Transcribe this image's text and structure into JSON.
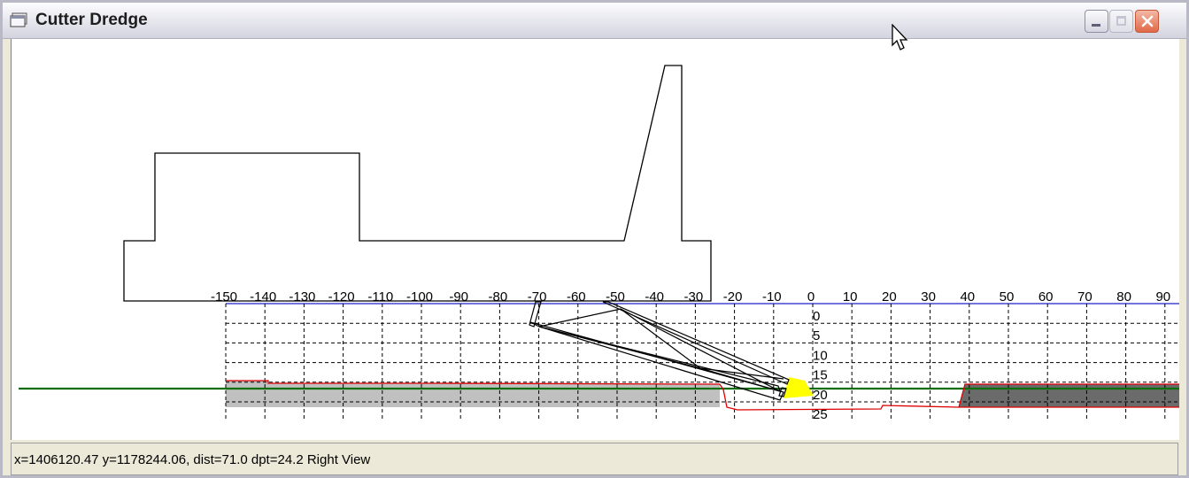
{
  "window": {
    "title": "Cutter Dredge",
    "icon": "window-app-icon"
  },
  "title_buttons": {
    "minimize": "minimize-icon",
    "maximize": "maximize-icon",
    "close": "close-icon"
  },
  "profile_view": {
    "x_ticks": [
      "-150",
      "-140",
      "-130",
      "-120",
      "-110",
      "-100",
      "-90",
      "-80",
      "-70",
      "-60",
      "-50",
      "-40",
      "-30",
      "-20",
      "-10",
      "0",
      "10",
      "20",
      "30",
      "40",
      "50",
      "60",
      "70",
      "80",
      "90"
    ],
    "depth_ticks": [
      "0",
      "5",
      "10",
      "15",
      "20",
      "25"
    ],
    "colors": {
      "water_line": "#0b6e0b",
      "existing_bottom": "#dd0000",
      "design_line": "#0000cc",
      "fill_left": "#c0c0c0",
      "fill_right": "#6b6b6b",
      "cutter_head": "#ffff00"
    }
  },
  "status": {
    "text": "x=1406120.47 y=1178244.06, dist=71.0 dpt=24.2 Right View"
  }
}
